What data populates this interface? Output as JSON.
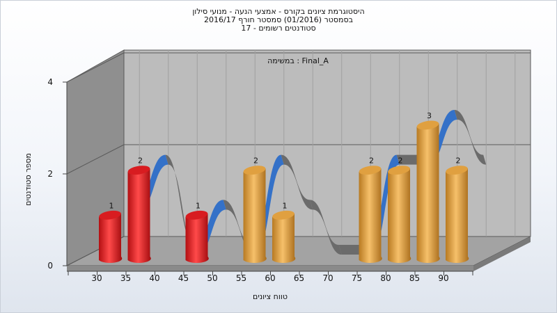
{
  "chart_data": {
    "type": "bar",
    "title_lines": [
      "היסטוגרמת ציונים בקורס - אמצעי הנעה - מנועי סילון",
      "בסמסטר  (01/2016)  סמסטר חורף 2016/17",
      "סטודנטים רשומים - 17"
    ],
    "subtitle": "במשימה : Final_A",
    "xlabel": "טווח ציונים",
    "ylabel": "מספר סטודנטים",
    "ylim": [
      0,
      4
    ],
    "yticks": [
      0,
      2,
      4
    ],
    "xticks": [
      30,
      35,
      40,
      45,
      50,
      55,
      60,
      65,
      70,
      75,
      80,
      85,
      90
    ],
    "bars": [
      {
        "x": 30,
        "value": 1,
        "label": "1",
        "color": "#e8262a"
      },
      {
        "x": 35,
        "value": 2,
        "label": "2",
        "color": "#e8262a"
      },
      {
        "x": 45,
        "value": 1,
        "label": "1",
        "color": "#e8262a"
      },
      {
        "x": 55,
        "value": 2,
        "label": "2",
        "color": "#e9a23a"
      },
      {
        "x": 60,
        "value": 1,
        "label": "1",
        "color": "#e9a23a"
      },
      {
        "x": 75,
        "value": 2,
        "label": "2",
        "color": "#e9a23a"
      },
      {
        "x": 80,
        "value": 2,
        "label": "2",
        "color": "#e9a23a"
      },
      {
        "x": 85,
        "value": 3,
        "label": "3",
        "color": "#e9a23a"
      },
      {
        "x": 90,
        "value": 2,
        "label": "2",
        "color": "#e9a23a"
      }
    ],
    "ribbon_colors": {
      "up": "#3471c8",
      "down": "#6b6b6b"
    },
    "grid": true,
    "legend": "none"
  }
}
